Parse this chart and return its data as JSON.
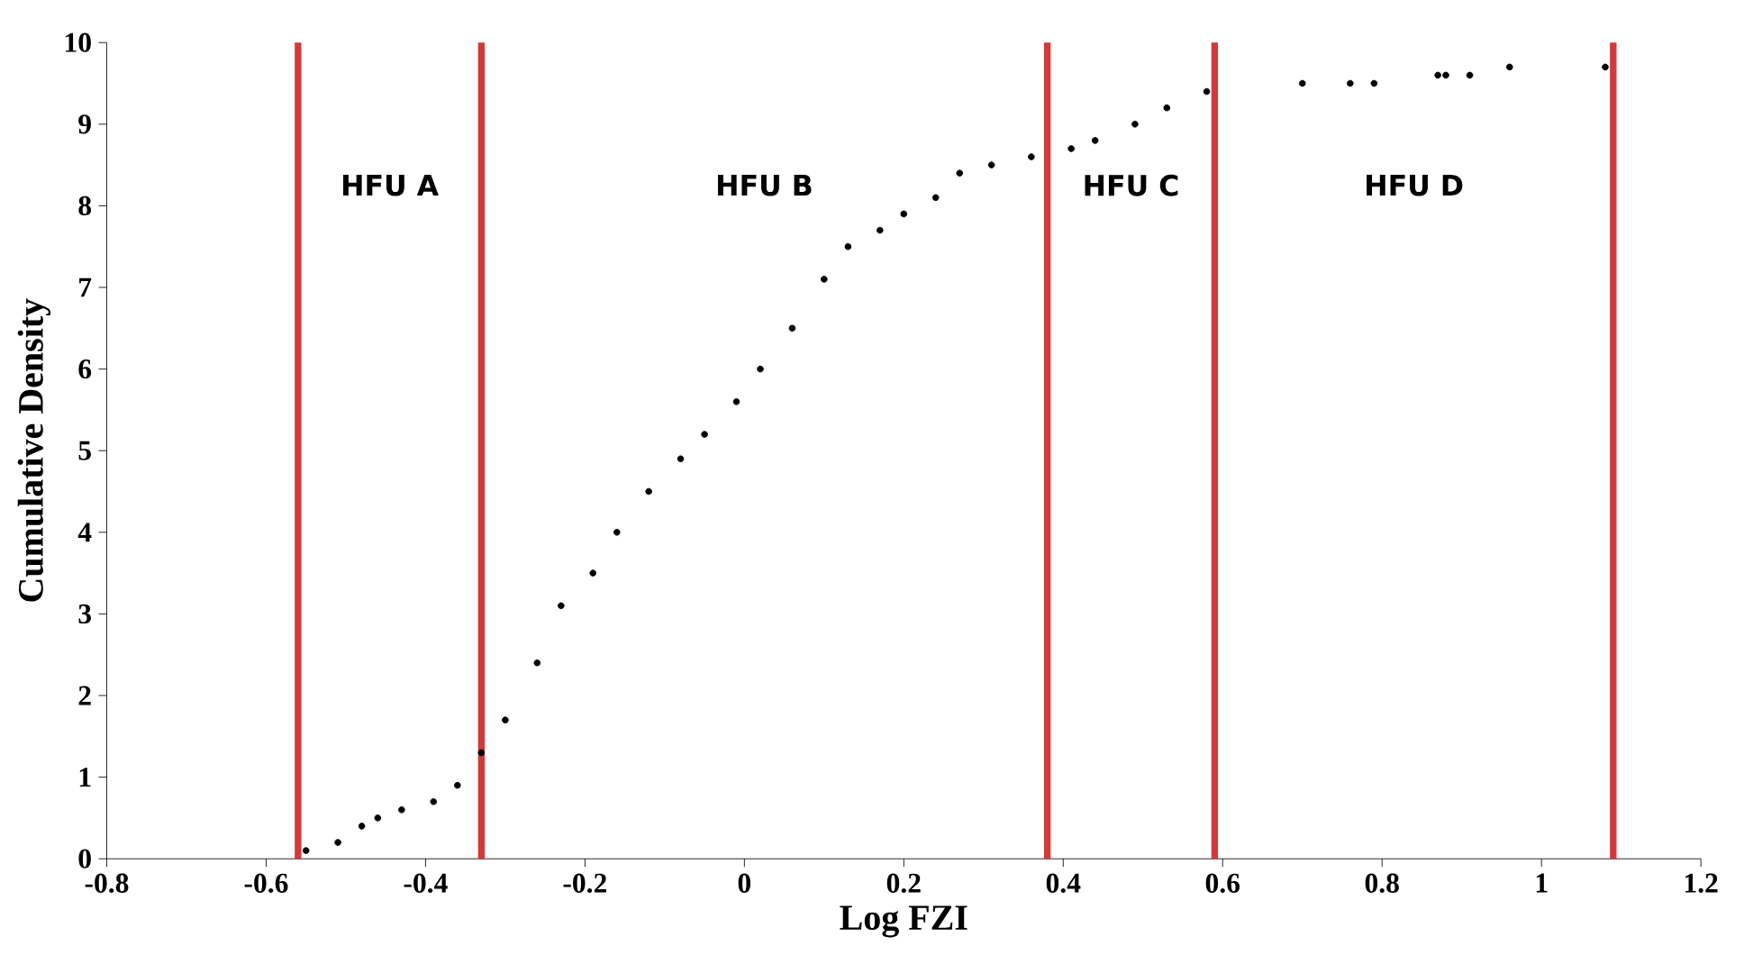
{
  "chart_data": {
    "type": "scatter",
    "xlabel": "Log FZI",
    "ylabel": "Cumulative Density",
    "xlim": [
      -0.8,
      1.2
    ],
    "ylim": [
      0,
      10
    ],
    "xticks": [
      -0.8,
      -0.6,
      -0.4,
      -0.2,
      0,
      0.2,
      0.4,
      0.6,
      0.8,
      1,
      1.2
    ],
    "yticks": [
      0,
      1,
      2,
      3,
      4,
      5,
      6,
      7,
      8,
      9,
      10
    ],
    "grid": false,
    "series": [
      {
        "color": "#000000",
        "x": [
          -0.55,
          -0.51,
          -0.48,
          -0.46,
          -0.43,
          -0.39,
          -0.36,
          -0.33,
          -0.3,
          -0.26,
          -0.23,
          -0.19,
          -0.16,
          -0.12,
          -0.08,
          -0.05,
          -0.01,
          0.02,
          0.06,
          0.1,
          0.13,
          0.17,
          0.2,
          0.24,
          0.27,
          0.31,
          0.36,
          0.41,
          0.44,
          0.49,
          0.53,
          0.58,
          0.7,
          0.76,
          0.79,
          0.87,
          0.88,
          0.91,
          0.96,
          1.08
        ],
        "values": [
          0.1,
          0.2,
          0.4,
          0.5,
          0.6,
          0.7,
          0.9,
          1.3,
          1.7,
          2.4,
          3.1,
          3.5,
          4.0,
          4.5,
          4.9,
          5.2,
          5.6,
          6.0,
          6.5,
          7.1,
          7.5,
          7.7,
          7.9,
          8.1,
          8.4,
          8.5,
          8.6,
          8.7,
          8.8,
          9.0,
          9.2,
          9.4,
          9.5,
          9.5,
          9.5,
          9.6,
          9.6,
          9.6,
          9.7,
          9.7
        ]
      }
    ],
    "ref_lines": [
      {
        "axis": "x",
        "value": -0.56,
        "color": "#d03a3a"
      },
      {
        "axis": "x",
        "value": -0.33,
        "color": "#d03a3a"
      },
      {
        "axis": "x",
        "value": 0.38,
        "color": "#d03a3a"
      },
      {
        "axis": "x",
        "value": 0.59,
        "color": "#d03a3a"
      },
      {
        "axis": "x",
        "value": 1.09,
        "color": "#d03a3a"
      }
    ],
    "annotations": [
      "HFU A",
      "HFU B",
      "HFU C",
      "HFU D"
    ]
  }
}
